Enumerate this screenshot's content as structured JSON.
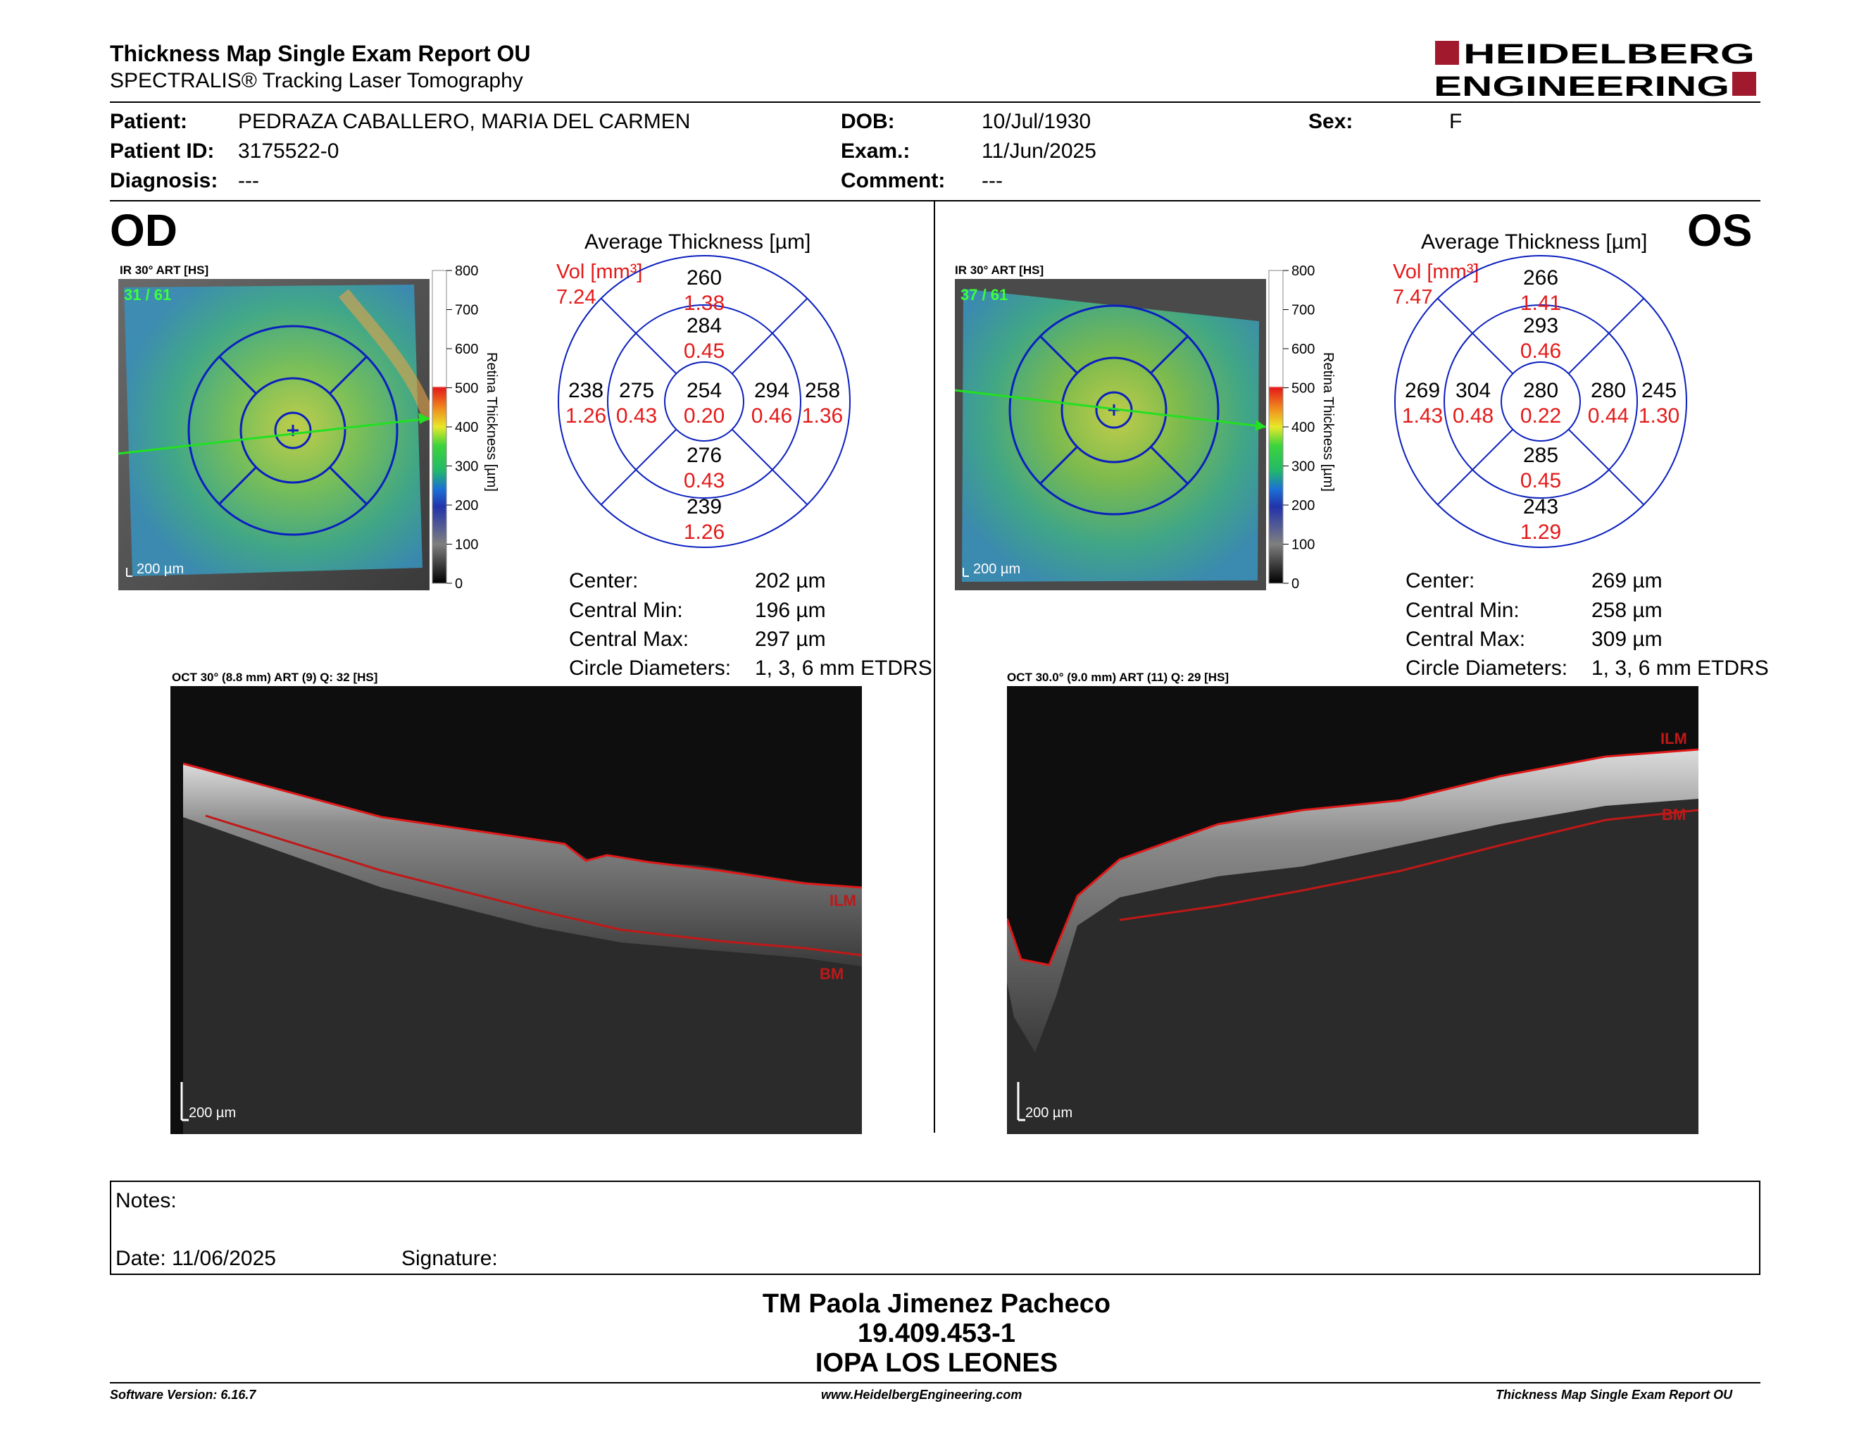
{
  "header": {
    "title": "Thickness Map Single Exam Report OU",
    "subtitle": "SPECTRALIS® Tracking Laser Tomography",
    "logo_line1": "HEIDELBERG",
    "logo_line2": "ENGINEERING",
    "brand_color": "#a0192d"
  },
  "patient": {
    "patient_label": "Patient:",
    "patient_value": "PEDRAZA CABALLERO, MARIA DEL CARMEN",
    "id_label": "Patient ID:",
    "id_value": "3175522-0",
    "diagnosis_label": "Diagnosis:",
    "diagnosis_value": "---",
    "dob_label": "DOB:",
    "dob_value": "10/Jul/1930",
    "exam_label": "Exam.:",
    "exam_value": "11/Jun/2025",
    "comment_label": "Comment:",
    "comment_value": "---",
    "sex_label": "Sex:",
    "sex_value": "F"
  },
  "od": {
    "eye": "OD",
    "fundus_label": "IR 30° ART [HS]",
    "frame_counter": "31 / 61",
    "scale_label": "200 µm",
    "avg_title": "Average Thickness [µm]",
    "vol_label": "Vol [mm³]",
    "vol_value": "7.24",
    "etdrs": {
      "center": {
        "t": "254",
        "v": "0.20"
      },
      "inner_top": {
        "t": "284",
        "v": "0.45"
      },
      "inner_bottom": {
        "t": "276",
        "v": "0.43"
      },
      "inner_left": {
        "t": "275",
        "v": "0.43"
      },
      "inner_right": {
        "t": "294",
        "v": "0.46"
      },
      "outer_top": {
        "t": "260",
        "v": "1.38"
      },
      "outer_bottom": {
        "t": "239",
        "v": "1.26"
      },
      "outer_left": {
        "t": "238",
        "v": "1.26"
      },
      "outer_right": {
        "t": "258",
        "v": "1.36"
      }
    },
    "stats": [
      {
        "label": "Center:",
        "value": "202 µm"
      },
      {
        "label": "Central Min:",
        "value": "196 µm"
      },
      {
        "label": "Central Max:",
        "value": "297 µm"
      },
      {
        "label": "Circle Diameters:",
        "value": "1, 3, 6 mm ETDRS"
      }
    ],
    "oct_label": "OCT 30° (8.8 mm) ART (9) Q: 32 [HS]",
    "oct_scale": "200 µm",
    "ilm": "ILM",
    "bm": "BM"
  },
  "os": {
    "eye": "OS",
    "fundus_label": "IR 30° ART [HS]",
    "frame_counter": "37 / 61",
    "scale_label": "200 µm",
    "avg_title": "Average Thickness [µm]",
    "vol_label": "Vol [mm³]",
    "vol_value": "7.47",
    "etdrs": {
      "center": {
        "t": "280",
        "v": "0.22"
      },
      "inner_top": {
        "t": "293",
        "v": "0.46"
      },
      "inner_bottom": {
        "t": "285",
        "v": "0.45"
      },
      "inner_left": {
        "t": "304",
        "v": "0.48"
      },
      "inner_right": {
        "t": "280",
        "v": "0.44"
      },
      "outer_top": {
        "t": "266",
        "v": "1.41"
      },
      "outer_bottom": {
        "t": "243",
        "v": "1.29"
      },
      "outer_left": {
        "t": "269",
        "v": "1.43"
      },
      "outer_right": {
        "t": "245",
        "v": "1.30"
      }
    },
    "stats": [
      {
        "label": "Center:",
        "value": "269 µm"
      },
      {
        "label": "Central Min:",
        "value": "258 µm"
      },
      {
        "label": "Central Max:",
        "value": "309 µm"
      },
      {
        "label": "Circle Diameters:",
        "value": "1, 3, 6 mm ETDRS"
      }
    ],
    "oct_label": "OCT 30.0° (9.0 mm) ART (11) Q: 29 [HS]",
    "oct_scale": "200 µm",
    "ilm": "ILM",
    "bm": "BM"
  },
  "colorbar": {
    "ticks": [
      "800",
      "700",
      "600",
      "500",
      "400",
      "300",
      "200",
      "100",
      "0"
    ],
    "label": "Retina Thickness [µm]"
  },
  "notes": {
    "notes_label": "Notes:",
    "date_label": "Date: 11/06/2025",
    "signature_label": "Signature:"
  },
  "signature": {
    "name": "TM Paola Jimenez Pacheco",
    "rut": "19.409.453-1",
    "place": "IOPA LOS LEONES"
  },
  "footer": {
    "version": "Software Version: 6.16.7",
    "url": "www.HeidelbergEngineering.com",
    "report": "Thickness Map Single Exam Report OU"
  }
}
